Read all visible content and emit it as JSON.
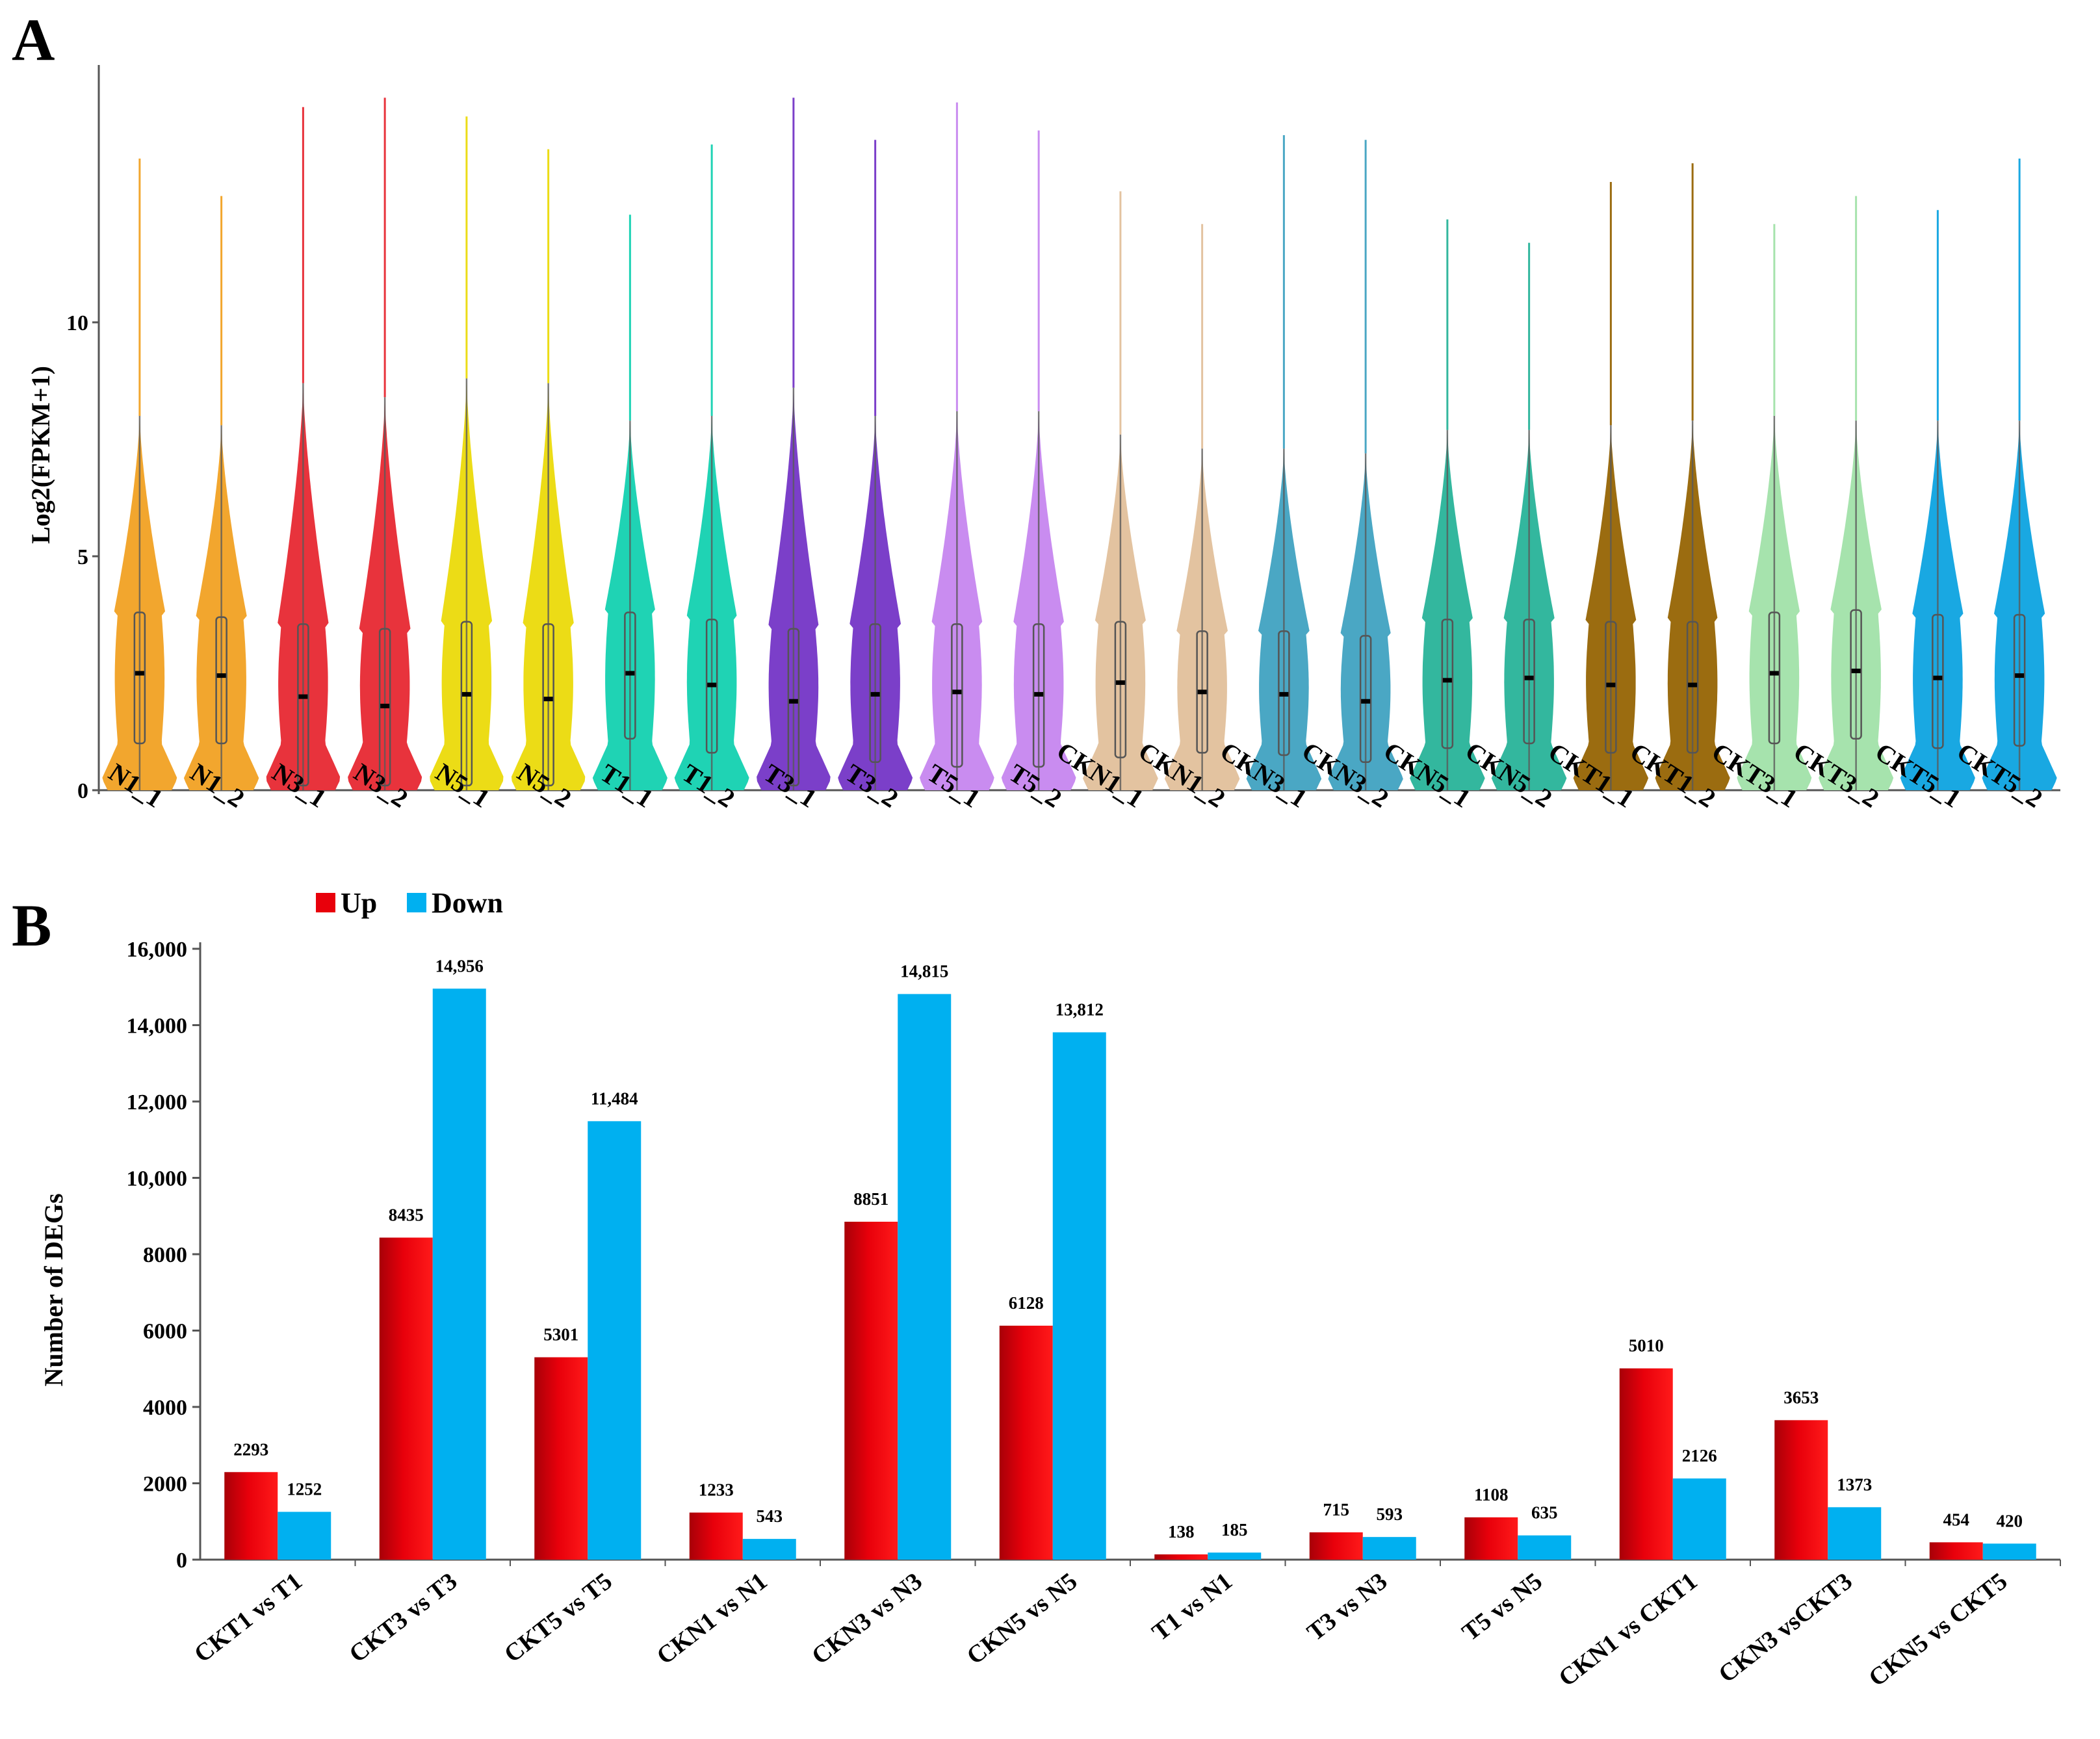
{
  "chart_data": [
    {
      "panel": "A",
      "type": "violin",
      "ylabel": "Log2(FPKM+1)",
      "ylim": [
        0,
        15.5
      ],
      "yticks": [
        0,
        5,
        10
      ],
      "samples": [
        {
          "name": "N1_1",
          "color": "#f2a62e",
          "median": 2.5,
          "q1": 1.0,
          "q3": 3.8,
          "wlow": 0,
          "whigh": 8.0,
          "max": 13.5
        },
        {
          "name": "N1_2",
          "color": "#f2a62e",
          "median": 2.45,
          "q1": 1.0,
          "q3": 3.7,
          "wlow": 0,
          "whigh": 7.8,
          "max": 12.7
        },
        {
          "name": "N3_1",
          "color": "#e8333c",
          "median": 2.0,
          "q1": 0.1,
          "q3": 3.55,
          "wlow": 0,
          "whigh": 8.7,
          "max": 14.6
        },
        {
          "name": "N3_2",
          "color": "#e8333c",
          "median": 1.8,
          "q1": 0.1,
          "q3": 3.45,
          "wlow": 0,
          "whigh": 8.4,
          "max": 14.8
        },
        {
          "name": "N5_1",
          "color": "#ecdc16",
          "median": 2.05,
          "q1": 0.1,
          "q3": 3.6,
          "wlow": 0,
          "whigh": 8.8,
          "max": 14.4
        },
        {
          "name": "N5_2",
          "color": "#ecdc16",
          "median": 1.95,
          "q1": 0.1,
          "q3": 3.55,
          "wlow": 0,
          "whigh": 8.7,
          "max": 13.7
        },
        {
          "name": "T1_1",
          "color": "#1fd3b4",
          "median": 2.5,
          "q1": 1.1,
          "q3": 3.8,
          "wlow": 0,
          "whigh": 7.9,
          "max": 12.3
        },
        {
          "name": "T1_2",
          "color": "#1fd3b4",
          "median": 2.25,
          "q1": 0.8,
          "q3": 3.65,
          "wlow": 0,
          "whigh": 8.0,
          "max": 13.8
        },
        {
          "name": "T3_1",
          "color": "#7b3fc9",
          "median": 1.9,
          "q1": 0.1,
          "q3": 3.45,
          "wlow": 0,
          "whigh": 8.6,
          "max": 14.8
        },
        {
          "name": "T3_2",
          "color": "#7b3fc9",
          "median": 2.05,
          "q1": 0.6,
          "q3": 3.55,
          "wlow": 0,
          "whigh": 8.0,
          "max": 13.9
        },
        {
          "name": "T5_1",
          "color": "#c98cf0",
          "median": 2.1,
          "q1": 0.5,
          "q3": 3.55,
          "wlow": 0,
          "whigh": 8.1,
          "max": 14.7
        },
        {
          "name": "T5_2",
          "color": "#c98cf0",
          "median": 2.05,
          "q1": 0.5,
          "q3": 3.55,
          "wlow": 0,
          "whigh": 8.1,
          "max": 14.1
        },
        {
          "name": "CKN1_1",
          "color": "#e3c3a0",
          "median": 2.3,
          "q1": 0.7,
          "q3": 3.6,
          "wlow": 0,
          "whigh": 7.6,
          "max": 12.8
        },
        {
          "name": "CKN1_2",
          "color": "#e3c3a0",
          "median": 2.1,
          "q1": 0.8,
          "q3": 3.4,
          "wlow": 0,
          "whigh": 7.3,
          "max": 12.1
        },
        {
          "name": "CKN3_1",
          "color": "#4aa7c4",
          "median": 2.05,
          "q1": 0.75,
          "q3": 3.4,
          "wlow": 0,
          "whigh": 7.3,
          "max": 14.0
        },
        {
          "name": "CKN3_2",
          "color": "#4aa7c4",
          "median": 1.9,
          "q1": 0.6,
          "q3": 3.3,
          "wlow": 0,
          "whigh": 7.2,
          "max": 13.9
        },
        {
          "name": "CKN5_1",
          "color": "#33b79e",
          "median": 2.35,
          "q1": 0.9,
          "q3": 3.65,
          "wlow": 0,
          "whigh": 7.7,
          "max": 12.2
        },
        {
          "name": "CKN5_2",
          "color": "#33b79e",
          "median": 2.4,
          "q1": 1.0,
          "q3": 3.65,
          "wlow": 0,
          "whigh": 7.7,
          "max": 11.7
        },
        {
          "name": "CKT1_1",
          "color": "#9b6c10",
          "median": 2.25,
          "q1": 0.8,
          "q3": 3.6,
          "wlow": 0,
          "whigh": 7.8,
          "max": 13.0
        },
        {
          "name": "CKT1_2",
          "color": "#9b6c10",
          "median": 2.25,
          "q1": 0.8,
          "q3": 3.6,
          "wlow": 0,
          "whigh": 7.9,
          "max": 13.4
        },
        {
          "name": "CKT3_1",
          "color": "#a6e3ad",
          "median": 2.5,
          "q1": 1.0,
          "q3": 3.8,
          "wlow": 0,
          "whigh": 8.0,
          "max": 12.1
        },
        {
          "name": "CKT3_2",
          "color": "#a6e3ad",
          "median": 2.55,
          "q1": 1.1,
          "q3": 3.85,
          "wlow": 0,
          "whigh": 7.9,
          "max": 12.7
        },
        {
          "name": "CKT5_1",
          "color": "#19a8e2",
          "median": 2.4,
          "q1": 0.9,
          "q3": 3.75,
          "wlow": 0,
          "whigh": 7.9,
          "max": 12.4
        },
        {
          "name": "CKT5_2",
          "color": "#19a8e2",
          "median": 2.45,
          "q1": 0.95,
          "q3": 3.75,
          "wlow": 0,
          "whigh": 7.9,
          "max": 13.5
        }
      ]
    },
    {
      "panel": "B",
      "type": "bar",
      "ylabel": "Number of DEGs",
      "ylim": [
        0,
        16000
      ],
      "yticks": [
        0,
        2000,
        4000,
        6000,
        8000,
        10000,
        12000,
        14000,
        16000
      ],
      "ytick_labels": [
        "0",
        "2000",
        "4000",
        "6000",
        "8000",
        "10,000",
        "12,000",
        "14,000",
        "16,000"
      ],
      "legend": {
        "position": "top-left"
      },
      "categories": [
        "CKT1 vs T1",
        "CKT3 vs T3",
        "CKT5 vs T5",
        "CKN1 vs N1",
        "CKN3 vs N3",
        "CKN5 vs N5",
        "T1 vs N1",
        "T3 vs N3",
        "T5 vs N5",
        "CKN1 vs CKT1",
        "CKN3 vsCKT3",
        "CKN5 vs CKT5"
      ],
      "series": [
        {
          "name": "Up",
          "color": "#e8000b",
          "values": [
            2293,
            8435,
            5301,
            1233,
            8851,
            6128,
            138,
            715,
            1108,
            5010,
            3653,
            454
          ],
          "labels": [
            "2293",
            "8435",
            "5301",
            "1233",
            "8851",
            "6128",
            "138",
            "715",
            "1108",
            "5010",
            "3653",
            "454"
          ]
        },
        {
          "name": "Down",
          "color": "#00b0f0",
          "values": [
            1252,
            14956,
            11484,
            543,
            14815,
            13812,
            185,
            593,
            635,
            2126,
            1373,
            420
          ],
          "labels": [
            "1252",
            "14,956",
            "11,484",
            "543",
            "14,815",
            "13,812",
            "185",
            "593",
            "635",
            "2126",
            "1373",
            "420"
          ]
        }
      ]
    }
  ],
  "panels": {
    "a_letter": "A",
    "b_letter": "B"
  }
}
